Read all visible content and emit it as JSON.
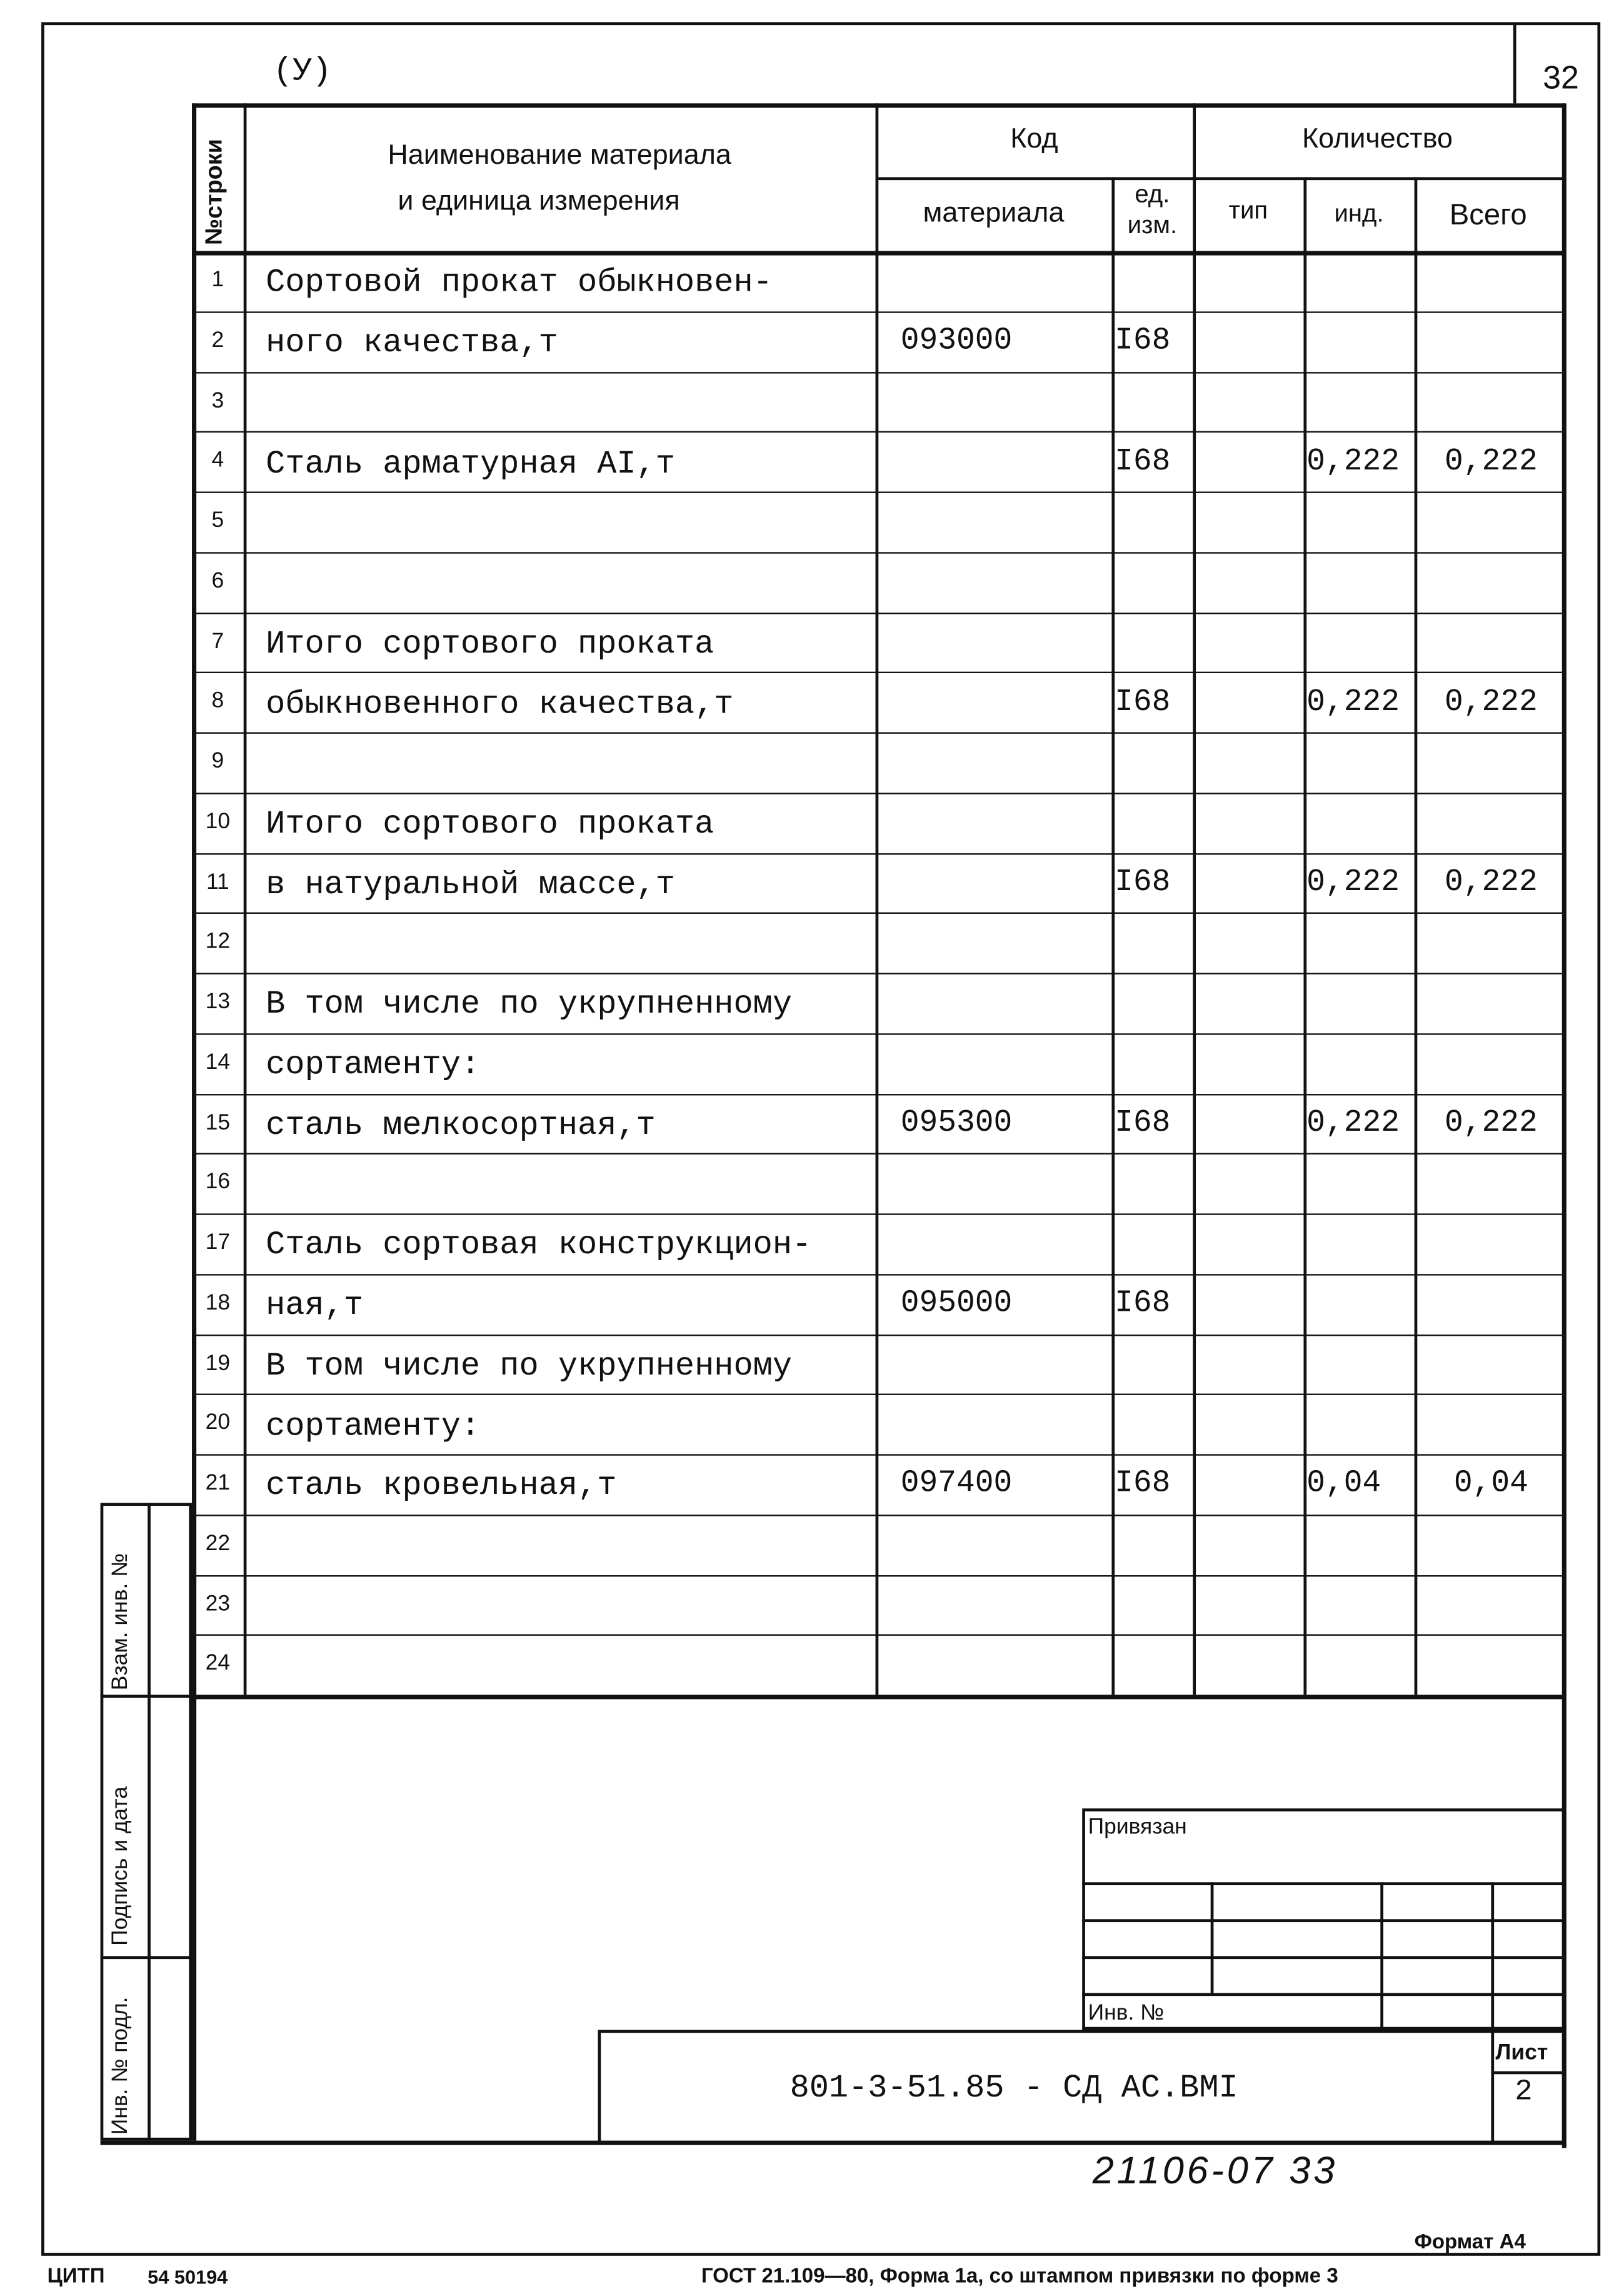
{
  "header": {
    "mark": "(У)",
    "page_number": "32",
    "col_row_no": "№строки",
    "col_name_line1": "Наименование материала",
    "col_name_line2": "и единица  измерения",
    "col_code": "Код",
    "col_code_material": "материала",
    "col_unit_line1": "ед.",
    "col_unit_line2": "изм.",
    "col_quantity": "Количество",
    "col_type": "тип",
    "col_ind": "инд.",
    "col_total": "Всего"
  },
  "rows": [
    {
      "n": "1",
      "name": "Сортовой прокат обыкновен-",
      "code": "",
      "unit": "",
      "type": "",
      "ind": "",
      "total": ""
    },
    {
      "n": "2",
      "name": "ного качества,т",
      "code": "093000",
      "unit": "I68",
      "type": "",
      "ind": "",
      "total": ""
    },
    {
      "n": "3",
      "name": "",
      "code": "",
      "unit": "",
      "type": "",
      "ind": "",
      "total": ""
    },
    {
      "n": "4",
      "name": "Сталь арматурная AI,т",
      "code": "",
      "unit": "I68",
      "type": "",
      "ind": "0,222",
      "total": "0,222"
    },
    {
      "n": "5",
      "name": "",
      "code": "",
      "unit": "",
      "type": "",
      "ind": "",
      "total": ""
    },
    {
      "n": "6",
      "name": "",
      "code": "",
      "unit": "",
      "type": "",
      "ind": "",
      "total": ""
    },
    {
      "n": "7",
      "name": "Итого сортового проката",
      "code": "",
      "unit": "",
      "type": "",
      "ind": "",
      "total": ""
    },
    {
      "n": "8",
      "name": "обыкновенного качества,т",
      "code": "",
      "unit": "I68",
      "type": "",
      "ind": "0,222",
      "total": "0,222"
    },
    {
      "n": "9",
      "name": "",
      "code": "",
      "unit": "",
      "type": "",
      "ind": "",
      "total": ""
    },
    {
      "n": "10",
      "name": "Итого сортового проката",
      "code": "",
      "unit": "",
      "type": "",
      "ind": "",
      "total": ""
    },
    {
      "n": "11",
      "name": "в натуральной массе,т",
      "code": "",
      "unit": "I68",
      "type": "",
      "ind": "0,222",
      "total": "0,222"
    },
    {
      "n": "12",
      "name": "",
      "code": "",
      "unit": "",
      "type": "",
      "ind": "",
      "total": ""
    },
    {
      "n": "13",
      "name": "В том числе по укрупненному",
      "code": "",
      "unit": "",
      "type": "",
      "ind": "",
      "total": ""
    },
    {
      "n": "14",
      "name": "сортаменту:",
      "code": "",
      "unit": "",
      "type": "",
      "ind": "",
      "total": ""
    },
    {
      "n": "15",
      "name": "сталь мелкосортная,т",
      "code": "095300",
      "unit": "I68",
      "type": "",
      "ind": "0,222",
      "total": "0,222"
    },
    {
      "n": "16",
      "name": "",
      "code": "",
      "unit": "",
      "type": "",
      "ind": "",
      "total": ""
    },
    {
      "n": "17",
      "name": "Сталь сортовая конструкцион-",
      "code": "",
      "unit": "",
      "type": "",
      "ind": "",
      "total": ""
    },
    {
      "n": "18",
      "name": "ная,т",
      "code": "095000",
      "unit": "I68",
      "type": "",
      "ind": "",
      "total": ""
    },
    {
      "n": "19",
      "name": "В том числе по укрупненному",
      "code": "",
      "unit": "",
      "type": "",
      "ind": "",
      "total": ""
    },
    {
      "n": "20",
      "name": "сортаменту:",
      "code": "",
      "unit": "",
      "type": "",
      "ind": "",
      "total": ""
    },
    {
      "n": "21",
      "name": "сталь кровельная,т",
      "code": "097400",
      "unit": "I68",
      "type": "",
      "ind": "0,04",
      "total": "0,04"
    },
    {
      "n": "22",
      "name": "",
      "code": "",
      "unit": "",
      "type": "",
      "ind": "",
      "total": ""
    },
    {
      "n": "23",
      "name": "",
      "code": "",
      "unit": "",
      "type": "",
      "ind": "",
      "total": ""
    },
    {
      "n": "24",
      "name": "",
      "code": "",
      "unit": "",
      "type": "",
      "ind": "",
      "total": ""
    }
  ],
  "sidebar": {
    "replace_inv": "Взам. инв. №",
    "signature_date": "Подпись и дата",
    "inv_original": "Инв. № подл."
  },
  "stamp": {
    "bound": "Привязан",
    "inv_no": "Инв. №",
    "document_code": "801-3-51.85 -  СД АС.ВМI",
    "sheet_label": "Лист",
    "sheet_number": "2"
  },
  "handwritten_number": "21106-07 33",
  "footer": {
    "format": "Формат А4",
    "publisher": "ЦИТП",
    "order_no": "54 50194",
    "standard": "ГОСТ 21.109—80, Форма 1а,  со штампом привязки по форме 3"
  }
}
